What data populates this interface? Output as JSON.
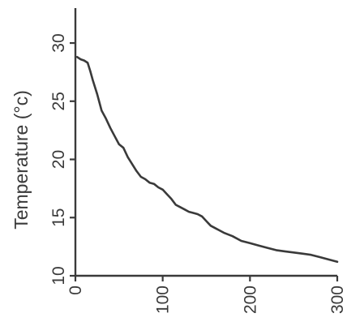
{
  "chart_data": {
    "type": "line",
    "title": "",
    "xlabel": "",
    "ylabel": "Temperature (°c)",
    "xlim": [
      0,
      300
    ],
    "ylim": [
      10,
      33
    ],
    "x_ticks": [
      0,
      100,
      200,
      300
    ],
    "y_ticks": [
      10,
      15,
      20,
      25,
      30
    ],
    "grid": false,
    "line_color": "#3a3a3a",
    "series": [
      {
        "x": [
          2,
          6,
          10,
          14,
          17,
          20,
          25,
          30,
          35,
          40,
          45,
          50,
          55,
          60,
          65,
          70,
          75,
          80,
          85,
          90,
          95,
          100,
          105,
          110,
          115,
          120,
          125,
          130,
          135,
          140,
          145,
          150,
          155,
          160,
          165,
          170,
          180,
          190,
          200,
          210,
          220,
          230,
          240,
          250,
          260,
          270,
          280,
          290,
          300
        ],
        "values": [
          28.8,
          28.6,
          28.5,
          28.3,
          27.6,
          26.8,
          25.6,
          24.2,
          23.5,
          22.7,
          22.0,
          21.3,
          21.0,
          20.2,
          19.6,
          19.0,
          18.5,
          18.3,
          18.0,
          17.9,
          17.6,
          17.4,
          17.0,
          16.6,
          16.1,
          15.9,
          15.7,
          15.5,
          15.4,
          15.3,
          15.1,
          14.7,
          14.3,
          14.1,
          13.9,
          13.7,
          13.4,
          13.0,
          12.8,
          12.6,
          12.4,
          12.2,
          12.1,
          12.0,
          11.9,
          11.8,
          11.6,
          11.4,
          11.2
        ]
      }
    ]
  }
}
